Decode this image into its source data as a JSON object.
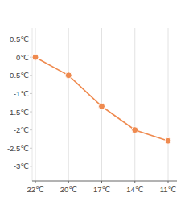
{
  "chart_data": {
    "type": "line",
    "categories": [
      "22℃",
      "20℃",
      "17℃",
      "14℃",
      "11℃"
    ],
    "values": [
      0,
      -0.5,
      -1.35,
      -2,
      -2.3
    ],
    "color": "#ef8a4f",
    "marker": "circle",
    "ylim": [
      -3.4,
      0.8
    ],
    "yticks": [
      {
        "value": 0.5,
        "label": "0.5℃"
      },
      {
        "value": 0,
        "label": "0℃"
      },
      {
        "value": -0.5,
        "label": "-0.5℃"
      },
      {
        "value": -1,
        "label": "-1℃"
      },
      {
        "value": -1.5,
        "label": "-1.5℃"
      },
      {
        "value": -2,
        "label": "-2℃"
      },
      {
        "value": -2.5,
        "label": "-2.5℃"
      },
      {
        "value": -3,
        "label": "-3℃"
      }
    ],
    "grid": true
  }
}
